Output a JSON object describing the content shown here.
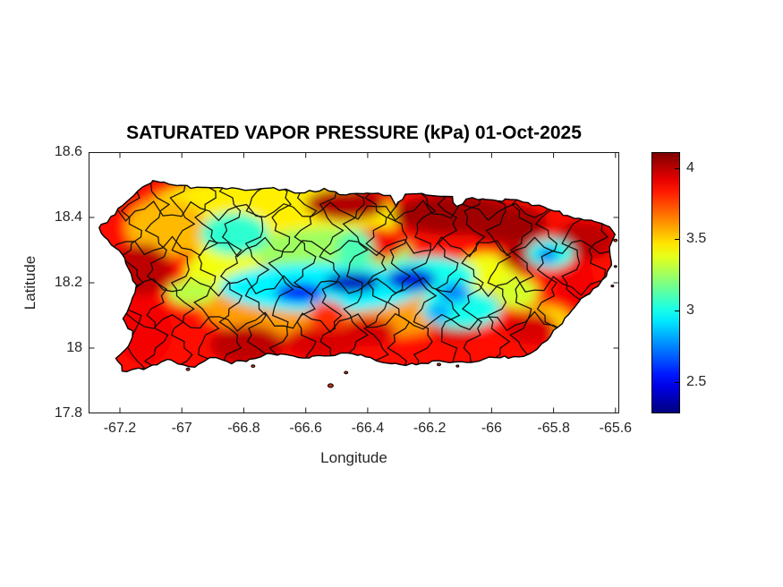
{
  "title": "SATURATED VAPOR PRESSURE (kPa) 01-Oct-2025",
  "axes": {
    "xlabel": "Longitude",
    "ylabel": "Latitude",
    "xlim": [
      -67.301,
      -65.588
    ],
    "ylim": [
      17.8,
      18.6
    ],
    "xticks": [
      -67.2,
      -67.0,
      -66.8,
      -66.6,
      -66.4,
      -66.2,
      -66.0,
      -65.8,
      -65.6
    ],
    "xtick_labels": [
      "-67.2",
      "-67",
      "-66.8",
      "-66.6",
      "-66.4",
      "-66.2",
      "-66",
      "-65.8",
      "-65.6"
    ],
    "yticks": [
      17.8,
      18.0,
      18.2,
      18.4,
      18.6
    ],
    "ytick_labels": [
      "17.8",
      "18",
      "18.2",
      "18.4",
      "18.6"
    ],
    "tick_color": "#262626",
    "axis_color": "#1a1a1a"
  },
  "colorbar": {
    "colormap": "jet",
    "cmin": 2.28,
    "cmax": 4.11,
    "ticks": [
      2.5,
      3.0,
      3.5,
      4.0
    ],
    "tick_labels": [
      "2.5",
      "3",
      "3.5",
      "4"
    ]
  },
  "chart_data": {
    "type": "heatmap",
    "title": "SATURATED VAPOR PRESSURE (kPa) 01-Oct-2025",
    "xlabel": "Longitude",
    "ylabel": "Latitude",
    "units": "kPa",
    "region": "Puerto Rico with municipal boundaries",
    "date": "01-Oct-2025",
    "value_range": [
      2.28,
      4.11
    ],
    "base_value": 3.85,
    "legend_position": "right-colorbar",
    "grid": false,
    "coastline": [
      [
        -67.27,
        18.365
      ],
      [
        -67.23,
        18.4
      ],
      [
        -67.16,
        18.47
      ],
      [
        -67.13,
        18.49
      ],
      [
        -67.09,
        18.515
      ],
      [
        -67.02,
        18.5
      ],
      [
        -66.95,
        18.49
      ],
      [
        -66.87,
        18.49
      ],
      [
        -66.78,
        18.485
      ],
      [
        -66.7,
        18.49
      ],
      [
        -66.62,
        18.475
      ],
      [
        -66.54,
        18.485
      ],
      [
        -66.47,
        18.47
      ],
      [
        -66.4,
        18.475
      ],
      [
        -66.33,
        18.47
      ],
      [
        -66.31,
        18.435
      ],
      [
        -66.28,
        18.47
      ],
      [
        -66.19,
        18.47
      ],
      [
        -66.13,
        18.462
      ],
      [
        -66.11,
        18.43
      ],
      [
        -66.08,
        18.458
      ],
      [
        -66.0,
        18.45
      ],
      [
        -65.92,
        18.455
      ],
      [
        -65.83,
        18.43
      ],
      [
        -65.77,
        18.41
      ],
      [
        -65.7,
        18.39
      ],
      [
        -65.63,
        18.38
      ],
      [
        -65.6,
        18.35
      ],
      [
        -65.62,
        18.31
      ],
      [
        -65.61,
        18.27
      ],
      [
        -65.63,
        18.22
      ],
      [
        -65.67,
        18.18
      ],
      [
        -65.72,
        18.14
      ],
      [
        -65.75,
        18.1
      ],
      [
        -65.8,
        18.05
      ],
      [
        -65.85,
        18.0
      ],
      [
        -65.91,
        17.97
      ],
      [
        -65.99,
        17.975
      ],
      [
        -66.08,
        17.955
      ],
      [
        -66.17,
        17.96
      ],
      [
        -66.26,
        17.95
      ],
      [
        -66.34,
        17.955
      ],
      [
        -66.45,
        17.985
      ],
      [
        -66.54,
        17.975
      ],
      [
        -66.61,
        17.97
      ],
      [
        -66.71,
        17.985
      ],
      [
        -66.78,
        17.965
      ],
      [
        -66.84,
        17.955
      ],
      [
        -66.91,
        17.97
      ],
      [
        -66.96,
        17.94
      ],
      [
        -67.05,
        17.965
      ],
      [
        -67.11,
        17.94
      ],
      [
        -67.19,
        17.93
      ],
      [
        -67.21,
        17.97
      ],
      [
        -67.17,
        18.01
      ],
      [
        -67.16,
        18.05
      ],
      [
        -67.19,
        18.09
      ],
      [
        -67.16,
        18.14
      ],
      [
        -67.15,
        18.19
      ],
      [
        -67.17,
        18.24
      ],
      [
        -67.19,
        18.29
      ],
      [
        -67.23,
        18.32
      ]
    ],
    "features": [
      {
        "lon": -66.72,
        "lat": 18.4,
        "rx": 0.42,
        "ry": 0.125,
        "v": 3.45
      },
      {
        "lon": -67.05,
        "lat": 18.37,
        "rx": 0.13,
        "ry": 0.09,
        "v": 3.55
      },
      {
        "lon": -66.52,
        "lat": 18.3,
        "rx": 0.26,
        "ry": 0.07,
        "v": 3.25
      },
      {
        "lon": -66.86,
        "lat": 18.23,
        "rx": 0.13,
        "ry": 0.08,
        "v": 3.4
      },
      {
        "lon": -66.5,
        "lat": 18.12,
        "rx": 0.44,
        "ry": 0.095,
        "v": 3.6
      },
      {
        "lon": -66.02,
        "lat": 18.23,
        "rx": 0.1,
        "ry": 0.06,
        "v": 3.4
      },
      {
        "lon": -65.92,
        "lat": 18.17,
        "rx": 0.07,
        "ry": 0.05,
        "v": 3.35
      },
      {
        "lon": -65.83,
        "lat": 18.08,
        "rx": 0.09,
        "ry": 0.05,
        "v": 3.5
      },
      {
        "lon": -66.47,
        "lat": 18.44,
        "rx": 0.13,
        "ry": 0.05,
        "v": 4.02
      },
      {
        "lon": -66.12,
        "lat": 18.41,
        "rx": 0.2,
        "ry": 0.065,
        "v": 4.05
      },
      {
        "lon": -65.95,
        "lat": 18.38,
        "rx": 0.13,
        "ry": 0.06,
        "v": 4.05
      },
      {
        "lon": -65.7,
        "lat": 18.33,
        "rx": 0.1,
        "ry": 0.06,
        "v": 4.0
      },
      {
        "lon": -65.9,
        "lat": 18.28,
        "rx": 0.07,
        "ry": 0.045,
        "v": 4.0
      },
      {
        "lon": -67.13,
        "lat": 18.24,
        "rx": 0.1,
        "ry": 0.08,
        "v": 4.0
      },
      {
        "lon": -67.12,
        "lat": 18.05,
        "rx": 0.09,
        "ry": 0.1,
        "v": 3.9
      },
      {
        "lon": -66.79,
        "lat": 18.01,
        "rx": 0.12,
        "ry": 0.06,
        "v": 4.0
      },
      {
        "lon": -66.55,
        "lat": 18.02,
        "rx": 0.12,
        "ry": 0.05,
        "v": 3.95
      },
      {
        "lon": -66.4,
        "lat": 18.05,
        "rx": 0.09,
        "ry": 0.045,
        "v": 3.95
      },
      {
        "lon": -66.12,
        "lat": 18.07,
        "rx": 0.08,
        "ry": 0.05,
        "v": 3.95
      },
      {
        "lon": -65.87,
        "lat": 18.06,
        "rx": 0.08,
        "ry": 0.05,
        "v": 3.95
      },
      {
        "lon": -65.73,
        "lat": 18.2,
        "rx": 0.06,
        "ry": 0.08,
        "v": 3.9
      },
      {
        "lon": -66.38,
        "lat": 18.32,
        "rx": 0.1,
        "ry": 0.05,
        "v": 3.9
      },
      {
        "lon": -66.83,
        "lat": 18.35,
        "rx": 0.11,
        "ry": 0.065,
        "v": 3.05
      },
      {
        "lon": -66.97,
        "lat": 18.17,
        "rx": 0.08,
        "ry": 0.04,
        "v": 3.3
      },
      {
        "lon": -66.55,
        "lat": 18.185,
        "rx": 0.33,
        "ry": 0.075,
        "v": 2.95
      },
      {
        "lon": -66.2,
        "lat": 18.22,
        "rx": 0.15,
        "ry": 0.06,
        "v": 3.0
      },
      {
        "lon": -66.44,
        "lat": 18.3,
        "rx": 0.06,
        "ry": 0.06,
        "v": 3.1
      },
      {
        "lon": -66.1,
        "lat": 18.12,
        "rx": 0.13,
        "ry": 0.06,
        "v": 3.0
      },
      {
        "lon": -65.81,
        "lat": 18.29,
        "rx": 0.075,
        "ry": 0.045,
        "v": 3.0
      },
      {
        "lon": -66.53,
        "lat": 18.1,
        "rx": 0.06,
        "ry": 0.045,
        "v": 3.8
      },
      {
        "lon": -66.62,
        "lat": 18.17,
        "rx": 0.08,
        "ry": 0.03,
        "v": 2.5
      },
      {
        "lon": -66.45,
        "lat": 18.2,
        "rx": 0.09,
        "ry": 0.032,
        "v": 2.4
      },
      {
        "lon": -66.26,
        "lat": 18.21,
        "rx": 0.08,
        "ry": 0.035,
        "v": 2.45
      },
      {
        "lon": -66.12,
        "lat": 18.17,
        "rx": 0.05,
        "ry": 0.03,
        "v": 2.75
      },
      {
        "lon": -66.17,
        "lat": 18.11,
        "rx": 0.04,
        "ry": 0.025,
        "v": 2.8
      },
      {
        "lon": -65.82,
        "lat": 18.285,
        "rx": 0.032,
        "ry": 0.02,
        "v": 2.65
      }
    ],
    "boundaries": {
      "vertical_lons": [
        -67.16,
        -67.08,
        -67.0,
        -66.92,
        -66.84,
        -66.76,
        -66.68,
        -66.6,
        -66.52,
        -66.44,
        -66.37,
        -66.3,
        -66.22,
        -66.14,
        -66.06,
        -65.98,
        -65.9,
        -65.82,
        -65.74,
        -65.66
      ],
      "horizontal_lats": [
        18.08,
        18.19,
        18.31,
        18.42
      ]
    },
    "islets": [
      {
        "lon": -66.52,
        "lat": 17.885,
        "r": 3
      },
      {
        "lon": -66.47,
        "lat": 17.925,
        "r": 2
      },
      {
        "lon": -66.77,
        "lat": 17.945,
        "r": 2
      },
      {
        "lon": -66.98,
        "lat": 17.935,
        "r": 2
      },
      {
        "lon": -66.17,
        "lat": 17.95,
        "r": 2
      },
      {
        "lon": -66.11,
        "lat": 17.945,
        "r": 1.5
      },
      {
        "lon": -65.6,
        "lat": 18.33,
        "r": 2
      },
      {
        "lon": -65.6,
        "lat": 18.25,
        "r": 1.5
      },
      {
        "lon": -65.61,
        "lat": 18.19,
        "r": 1.5
      }
    ]
  }
}
